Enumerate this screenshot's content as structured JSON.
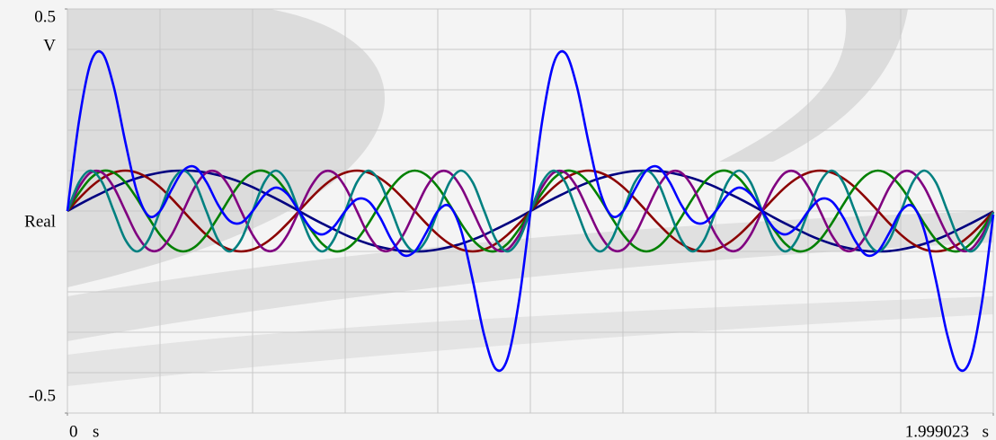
{
  "chart_data": {
    "type": "line",
    "y_label": "Real",
    "y_unit": "V",
    "x_unit": "s",
    "x": [
      0,
      0.025,
      0.05,
      0.075,
      0.1,
      0.125,
      0.15,
      0.175,
      0.2,
      0.225,
      0.25,
      0.275,
      0.3,
      0.325,
      0.35,
      0.375,
      0.4,
      0.425,
      0.45,
      0.475,
      0.5,
      0.525,
      0.55,
      0.575,
      0.6,
      0.625,
      0.65,
      0.675,
      0.7,
      0.725,
      0.75,
      0.775,
      0.8,
      0.825,
      0.85,
      0.875,
      0.9,
      0.925,
      0.95,
      0.975,
      1,
      1.025,
      1.05,
      1.075,
      1.1,
      1.125,
      1.15,
      1.175,
      1.2,
      1.225,
      1.25,
      1.275,
      1.3,
      1.325,
      1.35,
      1.375,
      1.4,
      1.425,
      1.45,
      1.475,
      1.5,
      1.525,
      1.55,
      1.575,
      1.6,
      1.625,
      1.65,
      1.675,
      1.7,
      1.725,
      1.75,
      1.775,
      1.8,
      1.825,
      1.85,
      1.875,
      1.9,
      1.925,
      1.95,
      1.975,
      1.999023
    ],
    "series": [
      {
        "color": "#000080",
        "values": [
          0,
          0.016,
          0.031,
          0.045,
          0.059,
          0.071,
          0.081,
          0.089,
          0.095,
          0.099,
          0.1,
          0.099,
          0.095,
          0.089,
          0.081,
          0.071,
          0.059,
          0.045,
          0.031,
          0.016,
          0,
          -0.016,
          -0.031,
          -0.045,
          -0.059,
          -0.071,
          -0.081,
          -0.089,
          -0.095,
          -0.099,
          -0.1,
          -0.099,
          -0.095,
          -0.089,
          -0.081,
          -0.071,
          -0.059,
          -0.045,
          -0.031,
          -0.016,
          0,
          0.016,
          0.031,
          0.045,
          0.059,
          0.071,
          0.081,
          0.089,
          0.095,
          0.099,
          0.1,
          0.099,
          0.095,
          0.089,
          0.081,
          0.071,
          0.059,
          0.045,
          0.031,
          0.016,
          0,
          -0.016,
          -0.031,
          -0.045,
          -0.059,
          -0.071,
          -0.081,
          -0.089,
          -0.095,
          -0.099,
          -0.1,
          -0.099,
          -0.095,
          -0.089,
          -0.081,
          -0.071,
          -0.059,
          -0.045,
          -0.031,
          -0.016,
          -0.001
        ]
      },
      {
        "color": "#8b0000",
        "values": [
          0,
          0.031,
          0.059,
          0.081,
          0.095,
          0.1,
          0.095,
          0.081,
          0.059,
          0.031,
          0,
          -0.031,
          -0.059,
          -0.081,
          -0.095,
          -0.1,
          -0.095,
          -0.081,
          -0.059,
          -0.031,
          0,
          0.031,
          0.059,
          0.081,
          0.095,
          0.1,
          0.095,
          0.081,
          0.059,
          0.031,
          0,
          -0.031,
          -0.059,
          -0.081,
          -0.095,
          -0.1,
          -0.095,
          -0.081,
          -0.059,
          -0.031,
          0,
          0.031,
          0.059,
          0.081,
          0.095,
          0.1,
          0.095,
          0.081,
          0.059,
          0.031,
          0,
          -0.031,
          -0.059,
          -0.081,
          -0.095,
          -0.1,
          -0.095,
          -0.081,
          -0.059,
          -0.031,
          0,
          0.031,
          0.059,
          0.081,
          0.095,
          0.1,
          0.095,
          0.081,
          0.059,
          0.031,
          0,
          -0.031,
          -0.059,
          -0.081,
          -0.095,
          -0.1,
          -0.095,
          -0.081,
          -0.059,
          -0.031,
          -0.001
        ]
      },
      {
        "color": "#008000",
        "values": [
          0,
          0.045,
          0.081,
          0.099,
          0.095,
          0.071,
          0.031,
          -0.016,
          -0.059,
          -0.089,
          -0.1,
          -0.089,
          -0.059,
          -0.016,
          0.031,
          0.071,
          0.095,
          0.099,
          0.081,
          0.045,
          0,
          -0.045,
          -0.081,
          -0.099,
          -0.095,
          -0.071,
          -0.031,
          0.016,
          0.059,
          0.089,
          0.1,
          0.089,
          0.059,
          0.016,
          -0.031,
          -0.071,
          -0.095,
          -0.099,
          -0.081,
          -0.045,
          0,
          0.045,
          0.081,
          0.099,
          0.095,
          0.071,
          0.031,
          -0.016,
          -0.059,
          -0.089,
          -0.1,
          -0.089,
          -0.059,
          -0.016,
          0.031,
          0.071,
          0.095,
          0.099,
          0.081,
          0.045,
          0,
          -0.045,
          -0.081,
          -0.099,
          -0.095,
          -0.071,
          -0.031,
          0.016,
          0.059,
          0.089,
          0.1,
          0.089,
          0.059,
          0.016,
          -0.031,
          -0.071,
          -0.095,
          -0.099,
          -0.081,
          -0.045,
          -0.002
        ]
      },
      {
        "color": "#800080",
        "values": [
          0,
          0.059,
          0.095,
          0.095,
          0.059,
          0,
          -0.059,
          -0.095,
          -0.095,
          -0.059,
          0,
          0.059,
          0.095,
          0.095,
          0.059,
          0,
          -0.059,
          -0.095,
          -0.095,
          -0.059,
          0,
          0.059,
          0.095,
          0.095,
          0.059,
          0,
          -0.059,
          -0.095,
          -0.095,
          -0.059,
          0,
          0.059,
          0.095,
          0.095,
          0.059,
          0,
          -0.059,
          -0.095,
          -0.095,
          -0.059,
          0,
          0.059,
          0.095,
          0.095,
          0.059,
          0,
          -0.059,
          -0.095,
          -0.095,
          -0.059,
          0,
          0.059,
          0.095,
          0.095,
          0.059,
          0,
          -0.059,
          -0.095,
          -0.095,
          -0.059,
          0,
          0.059,
          0.095,
          0.095,
          0.059,
          0,
          -0.059,
          -0.095,
          -0.095,
          -0.059,
          0,
          0.059,
          0.095,
          0.095,
          0.059,
          0,
          -0.059,
          -0.095,
          -0.095,
          -0.059,
          -0.002
        ]
      },
      {
        "color": "#008080",
        "values": [
          0,
          0.071,
          0.1,
          0.071,
          0,
          -0.071,
          -0.1,
          -0.071,
          0,
          0.071,
          0.1,
          0.071,
          0,
          -0.071,
          -0.1,
          -0.071,
          0,
          0.071,
          0.1,
          0.071,
          0,
          -0.071,
          -0.1,
          -0.071,
          0,
          0.071,
          0.1,
          0.071,
          0,
          -0.071,
          -0.1,
          -0.071,
          0,
          0.071,
          0.1,
          0.071,
          0,
          -0.071,
          -0.1,
          -0.071,
          0,
          0.071,
          0.1,
          0.071,
          0,
          -0.071,
          -0.1,
          -0.071,
          0,
          0.071,
          0.1,
          0.071,
          0,
          -0.071,
          -0.1,
          -0.071,
          0,
          0.071,
          0.1,
          0.071,
          0,
          -0.071,
          -0.1,
          -0.071,
          0,
          0.071,
          0.1,
          0.071,
          0,
          -0.071,
          -0.1,
          -0.071,
          0,
          0.071,
          0.1,
          0.071,
          0,
          -0.071,
          -0.1,
          -0.071,
          -0.003
        ]
      },
      {
        "color": "#0000ff",
        "values": [
          0,
          0.222,
          0.366,
          0.391,
          0.308,
          0.171,
          0.048,
          -0.012,
          0,
          0.053,
          0.1,
          0.109,
          0.072,
          0.016,
          -0.024,
          -0.029,
          0,
          0.039,
          0.058,
          0.042,
          0,
          -0.042,
          -0.058,
          -0.039,
          0,
          0.029,
          0.024,
          -0.016,
          -0.072,
          -0.109,
          -0.1,
          -0.053,
          0,
          0.012,
          -0.048,
          -0.171,
          -0.308,
          -0.391,
          -0.366,
          -0.222,
          0,
          0.222,
          0.366,
          0.391,
          0.308,
          0.171,
          0.048,
          -0.012,
          0,
          0.053,
          0.1,
          0.109,
          0.072,
          0.016,
          -0.024,
          -0.029,
          0,
          0.039,
          0.058,
          0.042,
          0,
          -0.042,
          -0.058,
          -0.039,
          0,
          0.029,
          0.024,
          -0.016,
          -0.072,
          -0.109,
          -0.1,
          -0.053,
          0,
          0.012,
          -0.048,
          -0.171,
          -0.308,
          -0.391,
          -0.366,
          -0.222,
          -0.009
        ]
      }
    ],
    "xlim": [
      0,
      1.999023
    ],
    "xticks": [
      0,
      1.999023
    ],
    "ylim": [
      -0.5,
      0.5
    ],
    "yticks": [
      -0.5,
      0.5
    ],
    "ygrid": [
      -0.5,
      -0.4,
      -0.3,
      -0.2,
      -0.1,
      0,
      0.1,
      0.2,
      0.3,
      0.4,
      0.5
    ],
    "xgrid": [
      0,
      0.1999,
      0.3998,
      0.5997,
      0.7996,
      0.9995,
      1.1994,
      1.3993,
      1.5992,
      1.7991,
      1.999023
    ],
    "grid": true
  }
}
